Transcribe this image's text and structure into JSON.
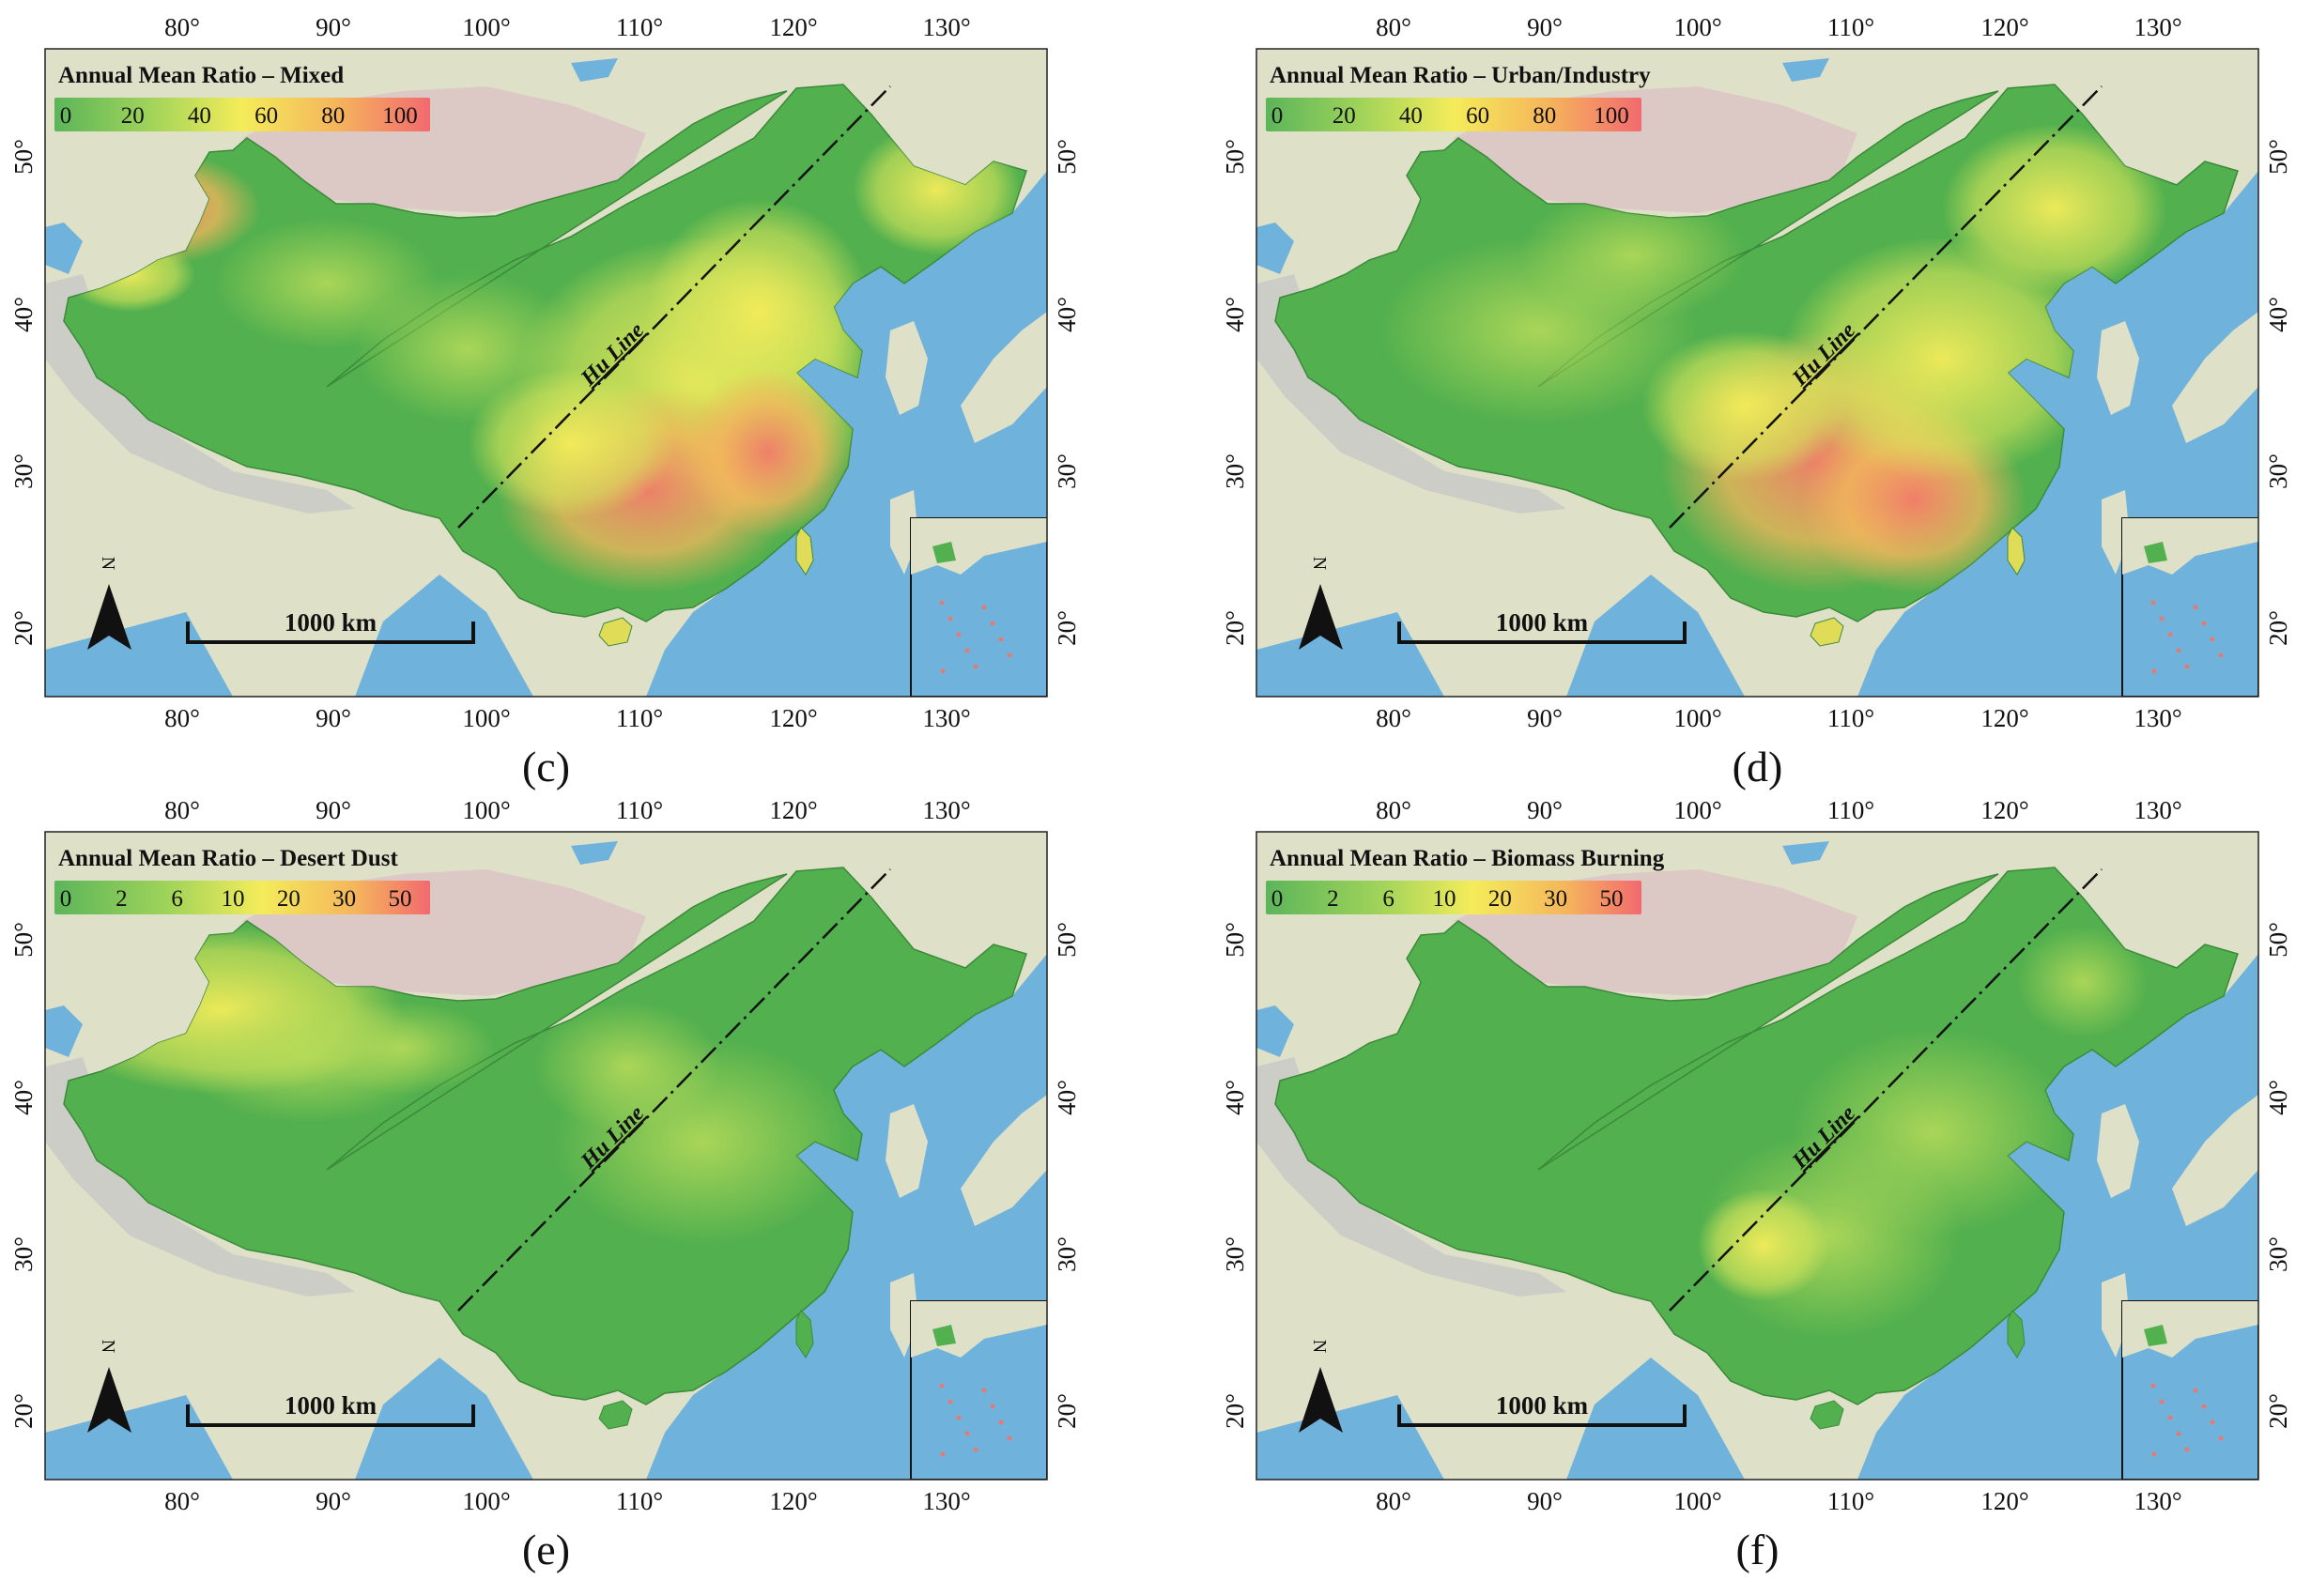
{
  "colors": {
    "ocean": "#6fb2dc",
    "land_bg": "#dfe0c8",
    "mountain": "#c8c8c8",
    "china_low": "#52b04e",
    "china_mid": "#f5ea4a",
    "china_high": "#f27b6b"
  },
  "panels": [
    {
      "caption": "(c)",
      "title": "Annual Mean Ratio – Mixed",
      "legend_labels": [
        "0",
        "20",
        "40",
        "60",
        "80",
        "100"
      ],
      "line_label": "Hu Line",
      "scale_label": "1000 km",
      "north_label": "N",
      "lon_ticks": [
        "80°",
        "90°",
        "100°",
        "110°",
        "120°",
        "130°"
      ],
      "lat_ticks": [
        "50°",
        "40°",
        "30°",
        "20°"
      ],
      "pattern": "mixed"
    },
    {
      "caption": "(d)",
      "title": "Annual Mean Ratio – Urban/Industry",
      "legend_labels": [
        "0",
        "20",
        "40",
        "60",
        "80",
        "100"
      ],
      "line_label": "Hu Line",
      "scale_label": "1000 km",
      "north_label": "N",
      "lon_ticks": [
        "80°",
        "90°",
        "100°",
        "110°",
        "120°",
        "130°"
      ],
      "lat_ticks": [
        "50°",
        "40°",
        "30°",
        "20°"
      ],
      "pattern": "urban"
    },
    {
      "caption": "(e)",
      "title": "Annual Mean Ratio – Desert Dust",
      "legend_labels": [
        "0",
        "2",
        "6",
        "10",
        "20",
        "30",
        "50"
      ],
      "line_label": "Hu Line",
      "scale_label": "1000 km",
      "north_label": "N",
      "lon_ticks": [
        "80°",
        "90°",
        "100°",
        "110°",
        "120°",
        "130°"
      ],
      "lat_ticks": [
        "50°",
        "40°",
        "30°",
        "20°"
      ],
      "pattern": "dust"
    },
    {
      "caption": "(f)",
      "title": "Annual Mean Ratio – Biomass Burning",
      "legend_labels": [
        "0",
        "2",
        "6",
        "10",
        "20",
        "30",
        "50"
      ],
      "line_label": "Hu Line",
      "scale_label": "1000 km",
      "north_label": "N",
      "lon_ticks": [
        "80°",
        "90°",
        "100°",
        "110°",
        "120°",
        "130°"
      ],
      "lat_ticks": [
        "50°",
        "40°",
        "30°",
        "20°"
      ],
      "pattern": "biomass"
    }
  ]
}
